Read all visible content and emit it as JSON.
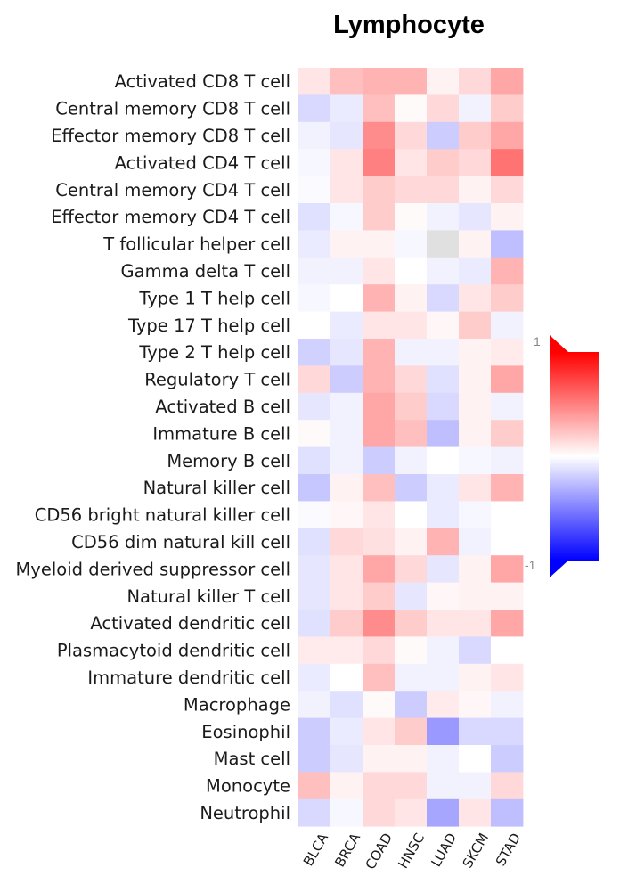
{
  "chart_data": {
    "type": "heatmap",
    "title": "Lymphocyte",
    "columns": [
      "BLCA",
      "BRCA",
      "COAD",
      "HNSC",
      "LUAD",
      "SKCM",
      "STAD"
    ],
    "rows": [
      "Activated CD8 T cell",
      "Central memory CD8 T cell",
      "Effector memory CD8 T cell",
      "Activated CD4 T cell",
      "Central memory CD4 T cell",
      "Effector memory CD4 T cell",
      "T follicular helper cell",
      "Gamma delta T cell",
      "Type 1 T help cell",
      "Type 17 T help cell",
      "Type 2 T help cell",
      "Regulatory T cell",
      "Activated B cell",
      "Immature B cell",
      "Memory B cell",
      "Natural killer cell",
      "CD56 bright natural killer cell",
      "CD56 dim natural kill cell",
      "Myeloid derived suppressor cell",
      "Natural killer T cell",
      "Activated dendritic cell",
      "Plasmacytoid dendritic cell",
      "Immature dendritic cell",
      "Macrophage",
      "Eosinophil",
      "Mast cell",
      "Monocyte",
      "Neutrophil"
    ],
    "values": [
      [
        0.1,
        0.25,
        0.3,
        0.3,
        0.05,
        0.15,
        0.35
      ],
      [
        -0.15,
        -0.08,
        0.25,
        0.02,
        0.15,
        -0.05,
        0.2
      ],
      [
        -0.05,
        -0.1,
        0.45,
        0.15,
        -0.2,
        0.2,
        0.35
      ],
      [
        -0.03,
        0.1,
        0.5,
        0.1,
        0.2,
        0.15,
        0.55
      ],
      [
        -0.02,
        0.1,
        0.2,
        0.15,
        0.15,
        0.05,
        0.15
      ],
      [
        -0.12,
        -0.03,
        0.2,
        0.02,
        -0.05,
        -0.1,
        0.05
      ],
      [
        -0.08,
        0.05,
        0.05,
        -0.03,
        null,
        0.05,
        -0.25
      ],
      [
        -0.05,
        -0.05,
        0.1,
        0.0,
        -0.05,
        -0.08,
        0.3
      ],
      [
        -0.03,
        0.0,
        0.3,
        0.05,
        -0.15,
        0.1,
        0.2
      ],
      [
        0.0,
        -0.08,
        0.1,
        0.1,
        0.03,
        0.2,
        -0.05
      ],
      [
        -0.18,
        -0.1,
        0.3,
        -0.05,
        -0.05,
        0.05,
        0.08
      ],
      [
        0.15,
        -0.2,
        0.3,
        0.15,
        -0.12,
        0.05,
        0.35
      ],
      [
        -0.1,
        -0.05,
        0.35,
        0.2,
        -0.15,
        0.05,
        -0.05
      ],
      [
        0.02,
        -0.05,
        0.35,
        0.25,
        -0.25,
        0.05,
        0.2
      ],
      [
        -0.12,
        -0.05,
        -0.2,
        -0.05,
        0.0,
        -0.03,
        -0.05
      ],
      [
        -0.22,
        0.05,
        0.25,
        -0.2,
        -0.08,
        0.1,
        0.3
      ],
      [
        -0.02,
        0.03,
        0.1,
        0.0,
        -0.08,
        -0.03,
        0.0
      ],
      [
        -0.12,
        0.15,
        0.12,
        0.05,
        0.3,
        -0.05,
        0.0
      ],
      [
        -0.1,
        0.1,
        0.35,
        0.15,
        -0.1,
        0.05,
        0.35
      ],
      [
        -0.1,
        0.1,
        0.2,
        -0.1,
        0.03,
        0.05,
        0.05
      ],
      [
        -0.12,
        0.2,
        0.45,
        0.2,
        0.1,
        0.1,
        0.35
      ],
      [
        0.08,
        0.08,
        0.15,
        0.02,
        -0.05,
        -0.15,
        0.0
      ],
      [
        -0.08,
        0.0,
        0.25,
        -0.05,
        -0.05,
        0.05,
        0.1
      ],
      [
        -0.05,
        -0.12,
        0.02,
        -0.2,
        0.08,
        0.03,
        -0.05
      ],
      [
        -0.2,
        -0.08,
        0.1,
        0.2,
        -0.4,
        -0.15,
        -0.15
      ],
      [
        -0.2,
        -0.1,
        0.05,
        0.05,
        -0.05,
        0.0,
        -0.2
      ],
      [
        0.25,
        0.05,
        0.15,
        0.15,
        -0.05,
        -0.05,
        0.15
      ],
      [
        -0.15,
        -0.03,
        0.15,
        0.1,
        -0.35,
        0.1,
        -0.25
      ]
    ],
    "colorbar": {
      "range": [
        -1,
        1
      ],
      "max_label": "1",
      "min_label": "-1",
      "colors": {
        "high": "#ff0000",
        "mid": "#ffffff",
        "low": "#0000ff",
        "missing": "#e0e0e0"
      }
    }
  }
}
